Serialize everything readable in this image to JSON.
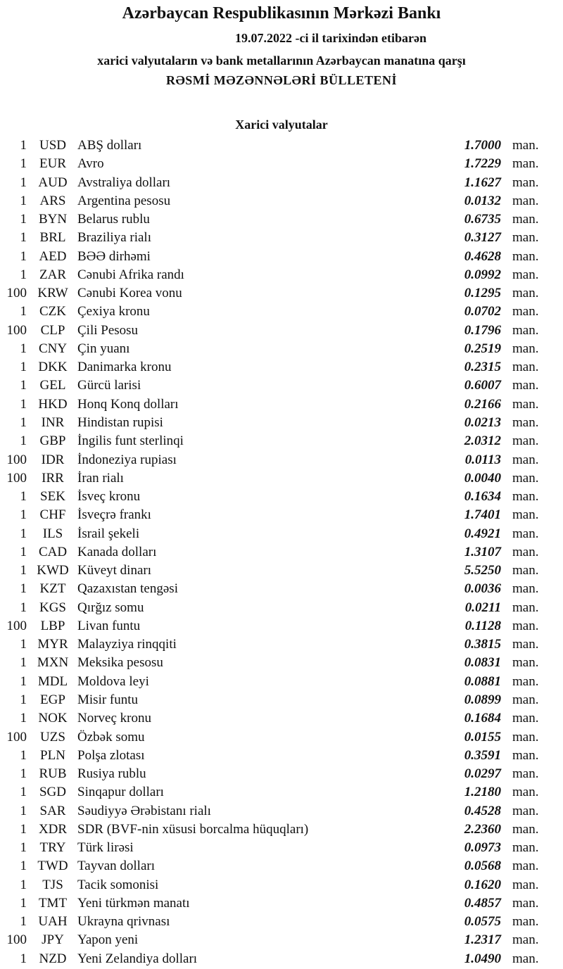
{
  "header": {
    "title": "Azərbaycan Respublikasının Mərkəzi Bankı",
    "date_line": "19.07.2022 -ci il tarixindən etibarən",
    "subtitle": "xarici valyutaların və bank metallarının Azərbaycan manatına qarşı",
    "bulletin": "RƏSMİ MƏZƏNNƏLƏRİ BÜLLETENİ",
    "section": "Xarici valyutalar"
  },
  "rows": [
    {
      "qty": "1",
      "code": "USD",
      "name": "ABŞ dolları",
      "rate": "1.7000",
      "unit": "man."
    },
    {
      "qty": "1",
      "code": "EUR",
      "name": "Avro",
      "rate": "1.7229",
      "unit": "man."
    },
    {
      "qty": "1",
      "code": "AUD",
      "name": "Avstraliya dolları",
      "rate": "1.1627",
      "unit": "man."
    },
    {
      "qty": "1",
      "code": "ARS",
      "name": "Argentina pesosu",
      "rate": "0.0132",
      "unit": "man."
    },
    {
      "qty": "1",
      "code": "BYN",
      "name": "Belarus rublu",
      "rate": "0.6735",
      "unit": "man."
    },
    {
      "qty": "1",
      "code": "BRL",
      "name": "Braziliya rialı",
      "rate": "0.3127",
      "unit": "man."
    },
    {
      "qty": "1",
      "code": "AED",
      "name": "BƏƏ dirhəmi",
      "rate": "0.4628",
      "unit": "man."
    },
    {
      "qty": "1",
      "code": "ZAR",
      "name": "Cənubi Afrika randı",
      "rate": "0.0992",
      "unit": "man."
    },
    {
      "qty": "100",
      "code": "KRW",
      "name": "Cənubi Korea vonu",
      "rate": "0.1295",
      "unit": "man."
    },
    {
      "qty": "1",
      "code": "CZK",
      "name": "Çexiya kronu",
      "rate": "0.0702",
      "unit": "man."
    },
    {
      "qty": "100",
      "code": "CLP",
      "name": "Çili Pesosu",
      "rate": "0.1796",
      "unit": "man."
    },
    {
      "qty": "1",
      "code": "CNY",
      "name": "Çin yuanı",
      "rate": "0.2519",
      "unit": "man."
    },
    {
      "qty": "1",
      "code": "DKK",
      "name": "Danimarka kronu",
      "rate": "0.2315",
      "unit": "man."
    },
    {
      "qty": "1",
      "code": "GEL",
      "name": "Gürcü larisi",
      "rate": "0.6007",
      "unit": "man."
    },
    {
      "qty": "1",
      "code": "HKD",
      "name": "Honq Konq dolları",
      "rate": "0.2166",
      "unit": "man."
    },
    {
      "qty": "1",
      "code": "INR",
      "name": "Hindistan rupisi",
      "rate": "0.0213",
      "unit": "man."
    },
    {
      "qty": "1",
      "code": "GBP",
      "name": "İngilis funt sterlinqi",
      "rate": "2.0312",
      "unit": "man."
    },
    {
      "qty": "100",
      "code": "IDR",
      "name": "İndoneziya rupiası",
      "rate": "0.0113",
      "unit": "man."
    },
    {
      "qty": "100",
      "code": "IRR",
      "name": "İran rialı",
      "rate": "0.0040",
      "unit": "man."
    },
    {
      "qty": "1",
      "code": "SEK",
      "name": "İsveç kronu",
      "rate": "0.1634",
      "unit": "man."
    },
    {
      "qty": "1",
      "code": "CHF",
      "name": "İsveçrə frankı",
      "rate": "1.7401",
      "unit": "man."
    },
    {
      "qty": "1",
      "code": "ILS",
      "name": "İsrail şekeli",
      "rate": "0.4921",
      "unit": "man."
    },
    {
      "qty": "1",
      "code": "CAD",
      "name": "Kanada dolları",
      "rate": "1.3107",
      "unit": "man."
    },
    {
      "qty": "1",
      "code": "KWD",
      "name": "Küveyt dinarı",
      "rate": "5.5250",
      "unit": "man."
    },
    {
      "qty": "1",
      "code": "KZT",
      "name": "Qazaxıstan tengəsi",
      "rate": "0.0036",
      "unit": "man."
    },
    {
      "qty": "1",
      "code": "KGS",
      "name": "Qırğız somu",
      "rate": "0.0211",
      "unit": "man."
    },
    {
      "qty": "100",
      "code": "LBP",
      "name": "Livan funtu",
      "rate": "0.1128",
      "unit": "man."
    },
    {
      "qty": "1",
      "code": "MYR",
      "name": "Malayziya rinqqiti",
      "rate": "0.3815",
      "unit": "man."
    },
    {
      "qty": "1",
      "code": "MXN",
      "name": "Meksika pesosu",
      "rate": "0.0831",
      "unit": "man."
    },
    {
      "qty": "1",
      "code": "MDL",
      "name": "Moldova leyi",
      "rate": "0.0881",
      "unit": "man."
    },
    {
      "qty": "1",
      "code": "EGP",
      "name": "Misir funtu",
      "rate": "0.0899",
      "unit": "man."
    },
    {
      "qty": "1",
      "code": "NOK",
      "name": "Norveç kronu",
      "rate": "0.1684",
      "unit": "man."
    },
    {
      "qty": "100",
      "code": "UZS",
      "name": "Özbək somu",
      "rate": "0.0155",
      "unit": "man."
    },
    {
      "qty": "1",
      "code": "PLN",
      "name": "Polşa zlotası",
      "rate": "0.3591",
      "unit": "man."
    },
    {
      "qty": "1",
      "code": "RUB",
      "name": "Rusiya rublu",
      "rate": "0.0297",
      "unit": "man."
    },
    {
      "qty": "1",
      "code": "SGD",
      "name": "Sinqapur dolları",
      "rate": "1.2180",
      "unit": "man."
    },
    {
      "qty": "1",
      "code": "SAR",
      "name": "Səudiyyə Ərəbistanı rialı",
      "rate": "0.4528",
      "unit": "man."
    },
    {
      "qty": "1",
      "code": "XDR",
      "name": "SDR (BVF-nin xüsusi borcalma hüquqları)",
      "rate": "2.2360",
      "unit": "man."
    },
    {
      "qty": "1",
      "code": "TRY",
      "name": "Türk lirəsi",
      "rate": "0.0973",
      "unit": "man."
    },
    {
      "qty": "1",
      "code": "TWD",
      "name": "Tayvan dolları",
      "rate": "0.0568",
      "unit": "man."
    },
    {
      "qty": "1",
      "code": "TJS",
      "name": "Tacik somonisi",
      "rate": "0.1620",
      "unit": "man."
    },
    {
      "qty": "1",
      "code": "TMT",
      "name": "Yeni türkmən manatı",
      "rate": "0.4857",
      "unit": "man."
    },
    {
      "qty": "1",
      "code": "UAH",
      "name": "Ukrayna qrivnası",
      "rate": "0.0575",
      "unit": "man."
    },
    {
      "qty": "100",
      "code": "JPY",
      "name": "Yapon yeni",
      "rate": "1.2317",
      "unit": "man."
    },
    {
      "qty": "1",
      "code": "NZD",
      "name": "Yeni Zelandiya dolları",
      "rate": "1.0490",
      "unit": "man."
    }
  ]
}
